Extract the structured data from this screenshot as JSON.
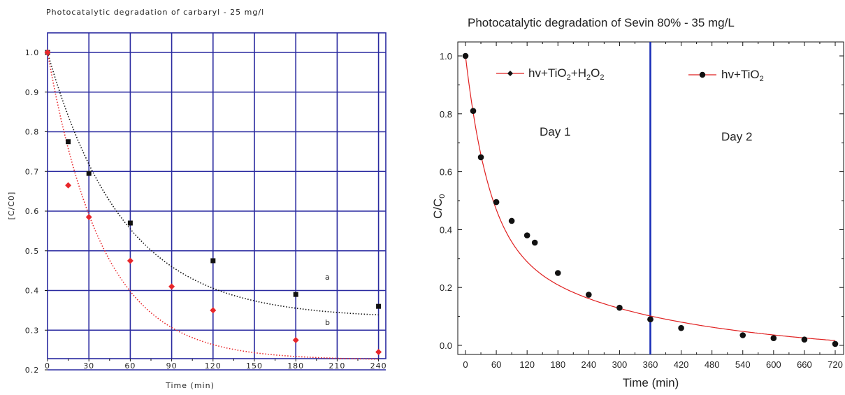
{
  "chart_data": [
    {
      "type": "scatter",
      "title": "Photocatalytic degradation of carbaryl - 25 mg/l",
      "xlabel": "Time (min)",
      "ylabel": "[C/C0]",
      "xlim": [
        0,
        250
      ],
      "ylim": [
        0.19,
        1.03
      ],
      "x_ticks": [
        0,
        30,
        60,
        90,
        120,
        150,
        180,
        210,
        240
      ],
      "y_ticks": [
        0.2,
        0.3,
        0.4,
        0.5,
        0.6,
        0.7,
        0.8,
        0.9,
        1.0
      ],
      "x_tick_labels": [
        "0",
        "30",
        "60",
        "90",
        "120",
        "150",
        "180",
        "210",
        "240"
      ],
      "y_tick_labels": [
        "0.2",
        "0.3",
        "0.4",
        "0.5",
        "0.6",
        "0.7",
        "0.8",
        "0.9",
        "1.0"
      ],
      "grid": true,
      "grid_color": "#2a2aa0",
      "series": [
        {
          "name": "a",
          "color": "#111111",
          "marker": "square",
          "line_style": "dotted",
          "x": [
            0,
            15,
            30,
            60,
            120,
            180,
            240
          ],
          "y": [
            1.0,
            0.775,
            0.695,
            0.57,
            0.475,
            0.39,
            0.36
          ]
        },
        {
          "name": "b",
          "color": "#e8262a",
          "marker": "diamond",
          "line_style": "dotted",
          "x": [
            0,
            15,
            30,
            60,
            90,
            120,
            180,
            240
          ],
          "y": [
            1.0,
            0.665,
            0.585,
            0.475,
            0.41,
            0.35,
            0.275,
            0.245
          ]
        }
      ],
      "annotations": [
        {
          "text": "a",
          "x": 215,
          "y": 0.4
        },
        {
          "text": "b",
          "x": 215,
          "y": 0.29
        }
      ]
    },
    {
      "type": "line",
      "title": "Photocatalytic degradation of Sevin 80%  - 35 mg/L",
      "xlabel": "Time (min)",
      "ylabel": "C/C0",
      "xlim": [
        -12,
        732
      ],
      "ylim": [
        -0.02,
        1.05
      ],
      "x_ticks": [
        0,
        60,
        120,
        180,
        240,
        300,
        360,
        420,
        480,
        540,
        600,
        660,
        720
      ],
      "y_ticks": [
        0.0,
        0.2,
        0.4,
        0.6,
        0.8,
        1.0
      ],
      "x_tick_labels": [
        "0",
        "60",
        "120",
        "180",
        "240",
        "300",
        "360",
        "420",
        "480",
        "540",
        "600",
        "660",
        "720"
      ],
      "y_tick_labels": [
        "0.0",
        "0.2",
        "0.4",
        "0.6",
        "0.8",
        "1.0"
      ],
      "grid": false,
      "curve_color": "#e02020",
      "divider_x": 360,
      "divider_color": "#1a2fb8",
      "regions": [
        "Day 1",
        "Day 2"
      ],
      "series": [
        {
          "name": "hv+TiO2+H2O2",
          "color": "#111111",
          "marker": "diamond",
          "x": [
            0,
            15,
            30,
            60,
            90,
            120,
            135,
            180,
            240,
            300,
            360
          ],
          "y": [
            1.0,
            0.81,
            0.65,
            0.495,
            0.43,
            0.38,
            0.355,
            0.25,
            0.175,
            0.13,
            0.09
          ]
        },
        {
          "name": "hv+TiO2",
          "color": "#111111",
          "marker": "circle",
          "x": [
            360,
            420,
            540,
            600,
            660,
            720
          ],
          "y": [
            0.09,
            0.06,
            0.035,
            0.025,
            0.02,
            0.005
          ]
        }
      ],
      "legend": {
        "placement": "top",
        "items": [
          {
            "prefix": "hv+TiO",
            "sub1": "2",
            "mid": "+H",
            "sub2": "2",
            "mid2": "O",
            "sub3": "2"
          },
          {
            "prefix": "hv+TiO",
            "sub1": "2"
          }
        ]
      }
    }
  ],
  "labels": {
    "left_title": "Photocatalytic degradation of carbaryl - 25 mg/l",
    "left_xlabel": "Time (min)",
    "left_ylabel": "[C/C0]",
    "left_anno_a": "a",
    "left_anno_b": "b",
    "right_title": "Photocatalytic degradation of Sevin 80%  - 35 mg/L",
    "right_xlabel": "Time (min)",
    "right_ylabel_main": "C/C",
    "right_ylabel_sub": "0",
    "right_day1": "Day 1",
    "right_day2": "Day 2",
    "legend1_prefix": "hv+TiO",
    "legend1_sub1": "2",
    "legend1_mid": "+H",
    "legend1_sub2": "2",
    "legend1_mid2": "O",
    "legend1_sub3": "2",
    "legend2_prefix": "hv+TiO",
    "legend2_sub1": "2"
  }
}
